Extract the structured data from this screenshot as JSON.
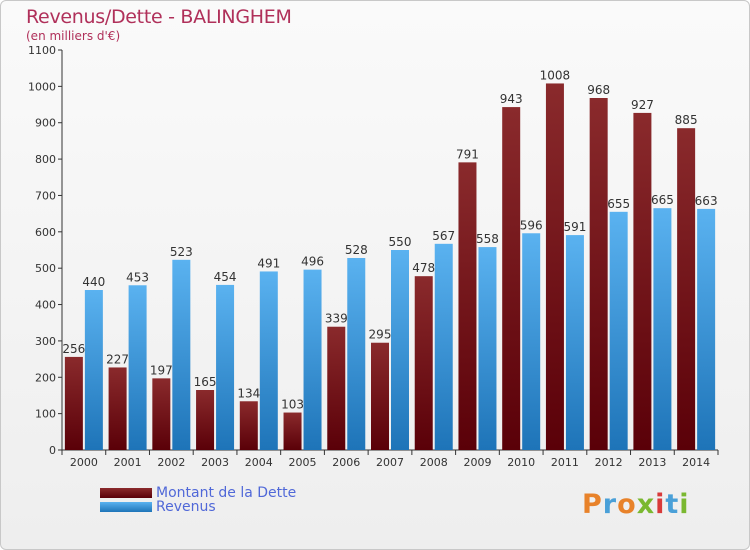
{
  "header": {
    "title": "Revenus/Dette - BALINGHEM",
    "subtitle": "(en milliers d'€)"
  },
  "logo": {
    "text": "Proxiti",
    "colors": [
      "#e8822a",
      "#4aa0d8",
      "#e8822a",
      "#7ab830",
      "#d83a3a",
      "#4aa0d8",
      "#7ab830"
    ]
  },
  "colors": {
    "dette": "#7a1a1e",
    "revenus": "#3a9ae0",
    "title": "#b0305a",
    "legend_text": "#5068d8"
  },
  "chart_data": {
    "type": "bar",
    "categories": [
      "2000",
      "2001",
      "2002",
      "2003",
      "2004",
      "2005",
      "2006",
      "2007",
      "2008",
      "2009",
      "2010",
      "2011",
      "2012",
      "2013",
      "2014"
    ],
    "series": [
      {
        "name": "Montant de la Dette",
        "values": [
          256,
          227,
          197,
          165,
          134,
          103,
          339,
          295,
          478,
          791,
          943,
          1008,
          968,
          927,
          885
        ]
      },
      {
        "name": "Revenus",
        "values": [
          440,
          453,
          523,
          454,
          491,
          496,
          528,
          550,
          567,
          558,
          596,
          591,
          655,
          665,
          663
        ]
      }
    ],
    "ylim": [
      0,
      1100
    ],
    "yticks": [
      0,
      100,
      200,
      300,
      400,
      500,
      600,
      700,
      800,
      900,
      1000,
      1100
    ],
    "grid": false,
    "legend": "bottom-left"
  }
}
